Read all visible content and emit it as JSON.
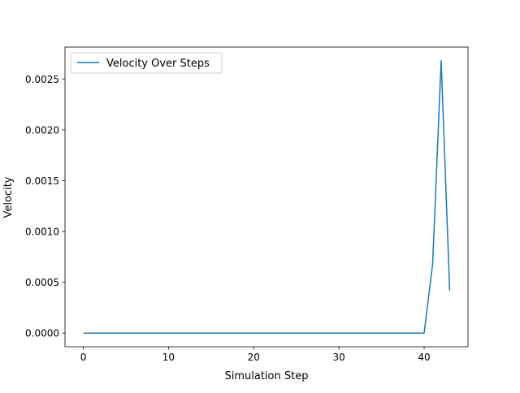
{
  "chart_data": {
    "type": "line",
    "title": "",
    "xlabel": "Simulation Step",
    "ylabel": "Velocity",
    "xlim": [
      -2.15,
      45.15
    ],
    "ylim": [
      -0.000134,
      0.002814
    ],
    "xticks": [
      0,
      10,
      20,
      30,
      40
    ],
    "xtick_labels": [
      "0",
      "10",
      "20",
      "30",
      "40"
    ],
    "yticks": [
      0.0,
      0.0005,
      0.001,
      0.0015,
      0.002,
      0.0025
    ],
    "ytick_labels": [
      "0.0000",
      "0.0005",
      "0.0010",
      "0.0015",
      "0.0020",
      "0.0025"
    ],
    "grid": false,
    "legend_position": "upper left",
    "series": [
      {
        "name": "Velocity Over Steps",
        "color": "#1f77b4",
        "x": [
          0,
          1,
          2,
          3,
          4,
          5,
          6,
          7,
          8,
          9,
          10,
          11,
          12,
          13,
          14,
          15,
          16,
          17,
          18,
          19,
          20,
          21,
          22,
          23,
          24,
          25,
          26,
          27,
          28,
          29,
          30,
          31,
          32,
          33,
          34,
          35,
          36,
          37,
          38,
          39,
          40,
          41,
          42,
          43
        ],
        "y": [
          0,
          0,
          0,
          0,
          0,
          0,
          0,
          0,
          0,
          0,
          0,
          0,
          0,
          0,
          0,
          0,
          0,
          0,
          0,
          0,
          0,
          0,
          0,
          0,
          0,
          0,
          0,
          0,
          0,
          0,
          0,
          0,
          0,
          0,
          0,
          0,
          0,
          0,
          0,
          0,
          0,
          0.00068,
          0.00268,
          0.00042
        ]
      }
    ]
  }
}
